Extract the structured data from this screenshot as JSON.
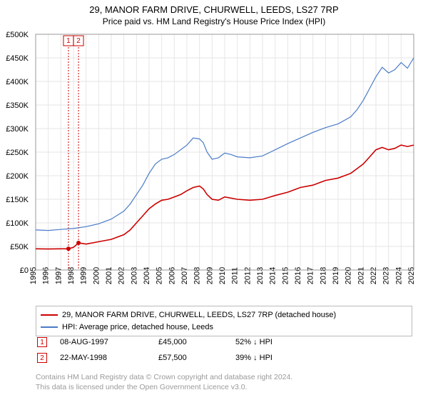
{
  "title": {
    "line1": "29, MANOR FARM DRIVE, CHURWELL, LEEDS, LS27 7RP",
    "line2": "Price paid vs. HM Land Registry's House Price Index (HPI)"
  },
  "chart": {
    "type": "line",
    "background_color": "#ffffff",
    "grid_color": "#e6e6e6",
    "axis_color": "#999999",
    "xlim": [
      1995,
      2025
    ],
    "ylim": [
      0,
      500000
    ],
    "ytick_step": 50000,
    "ytick_labels": [
      "£0",
      "£50K",
      "£100K",
      "£150K",
      "£200K",
      "£250K",
      "£300K",
      "£350K",
      "£400K",
      "£450K",
      "£500K"
    ],
    "xtick_step": 1,
    "xtick_labels": [
      "1995",
      "1996",
      "1997",
      "1998",
      "1999",
      "2000",
      "2001",
      "2002",
      "2003",
      "2004",
      "2005",
      "2006",
      "2007",
      "2008",
      "2009",
      "2010",
      "2011",
      "2012",
      "2013",
      "2014",
      "2015",
      "2016",
      "2017",
      "2018",
      "2019",
      "2020",
      "2021",
      "2022",
      "2023",
      "2024",
      "2025"
    ],
    "label_fontsize": 11,
    "series": [
      {
        "key": "property",
        "label": "29, MANOR FARM DRIVE, CHURWELL, LEEDS, LS27 7RP (detached house)",
        "color": "#cc0000",
        "line_width": 1.6,
        "data": [
          [
            1995.0,
            45000
          ],
          [
            1996.0,
            44500
          ],
          [
            1997.0,
            45000
          ],
          [
            1997.6,
            45000
          ],
          [
            1998.0,
            48000
          ],
          [
            1998.4,
            57500
          ],
          [
            1999.0,
            55000
          ],
          [
            2000.0,
            60000
          ],
          [
            2001.0,
            65000
          ],
          [
            2002.0,
            75000
          ],
          [
            2002.5,
            85000
          ],
          [
            2003.0,
            100000
          ],
          [
            2003.5,
            115000
          ],
          [
            2004.0,
            130000
          ],
          [
            2004.5,
            140000
          ],
          [
            2005.0,
            148000
          ],
          [
            2005.5,
            150000
          ],
          [
            2006.0,
            155000
          ],
          [
            2006.5,
            160000
          ],
          [
            2007.0,
            168000
          ],
          [
            2007.5,
            175000
          ],
          [
            2008.0,
            178000
          ],
          [
            2008.3,
            172000
          ],
          [
            2008.6,
            160000
          ],
          [
            2009.0,
            150000
          ],
          [
            2009.5,
            148000
          ],
          [
            2010.0,
            155000
          ],
          [
            2011.0,
            150000
          ],
          [
            2012.0,
            148000
          ],
          [
            2013.0,
            150000
          ],
          [
            2014.0,
            158000
          ],
          [
            2015.0,
            165000
          ],
          [
            2016.0,
            175000
          ],
          [
            2017.0,
            180000
          ],
          [
            2018.0,
            190000
          ],
          [
            2019.0,
            195000
          ],
          [
            2020.0,
            205000
          ],
          [
            2020.5,
            215000
          ],
          [
            2021.0,
            225000
          ],
          [
            2021.5,
            240000
          ],
          [
            2022.0,
            255000
          ],
          [
            2022.5,
            260000
          ],
          [
            2023.0,
            255000
          ],
          [
            2023.5,
            258000
          ],
          [
            2024.0,
            265000
          ],
          [
            2024.5,
            262000
          ],
          [
            2025.0,
            265000
          ]
        ]
      },
      {
        "key": "hpi",
        "label": "HPI: Average price, detached house, Leeds",
        "color": "#4a7bc8",
        "line_width": 1.2,
        "data": [
          [
            1995.0,
            85000
          ],
          [
            1996.0,
            84000
          ],
          [
            1997.0,
            86000
          ],
          [
            1998.0,
            88000
          ],
          [
            1999.0,
            92000
          ],
          [
            2000.0,
            98000
          ],
          [
            2001.0,
            108000
          ],
          [
            2002.0,
            125000
          ],
          [
            2002.5,
            140000
          ],
          [
            2003.0,
            160000
          ],
          [
            2003.5,
            180000
          ],
          [
            2004.0,
            205000
          ],
          [
            2004.5,
            225000
          ],
          [
            2005.0,
            235000
          ],
          [
            2005.5,
            238000
          ],
          [
            2006.0,
            245000
          ],
          [
            2006.5,
            255000
          ],
          [
            2007.0,
            265000
          ],
          [
            2007.5,
            280000
          ],
          [
            2008.0,
            278000
          ],
          [
            2008.3,
            270000
          ],
          [
            2008.6,
            250000
          ],
          [
            2009.0,
            235000
          ],
          [
            2009.5,
            238000
          ],
          [
            2010.0,
            248000
          ],
          [
            2010.5,
            245000
          ],
          [
            2011.0,
            240000
          ],
          [
            2012.0,
            238000
          ],
          [
            2013.0,
            242000
          ],
          [
            2014.0,
            255000
          ],
          [
            2015.0,
            268000
          ],
          [
            2016.0,
            280000
          ],
          [
            2017.0,
            292000
          ],
          [
            2018.0,
            302000
          ],
          [
            2019.0,
            310000
          ],
          [
            2020.0,
            325000
          ],
          [
            2020.5,
            340000
          ],
          [
            2021.0,
            360000
          ],
          [
            2021.5,
            385000
          ],
          [
            2022.0,
            410000
          ],
          [
            2022.5,
            430000
          ],
          [
            2023.0,
            418000
          ],
          [
            2023.5,
            425000
          ],
          [
            2024.0,
            440000
          ],
          [
            2024.5,
            428000
          ],
          [
            2025.0,
            450000
          ]
        ]
      }
    ],
    "markers": [
      {
        "id": "1",
        "x": 1997.6,
        "y": 45000,
        "color": "#cc0000"
      },
      {
        "id": "2",
        "x": 1998.4,
        "y": 57500,
        "color": "#cc0000"
      }
    ]
  },
  "legend": {
    "items": [
      {
        "color": "#cc0000",
        "label": "29, MANOR FARM DRIVE, CHURWELL, LEEDS, LS27 7RP (detached house)"
      },
      {
        "color": "#4a7bc8",
        "label": "HPI: Average price, detached house, Leeds"
      }
    ]
  },
  "events": [
    {
      "id": "1",
      "color": "#cc0000",
      "date": "08-AUG-1997",
      "price": "£45,000",
      "delta": "52% ↓ HPI"
    },
    {
      "id": "2",
      "color": "#cc0000",
      "date": "22-MAY-1998",
      "price": "£57,500",
      "delta": "39% ↓ HPI"
    }
  ],
  "footer": {
    "line1": "Contains HM Land Registry data © Crown copyright and database right 2024.",
    "line2": "This data is licensed under the Open Government Licence v3.0."
  }
}
